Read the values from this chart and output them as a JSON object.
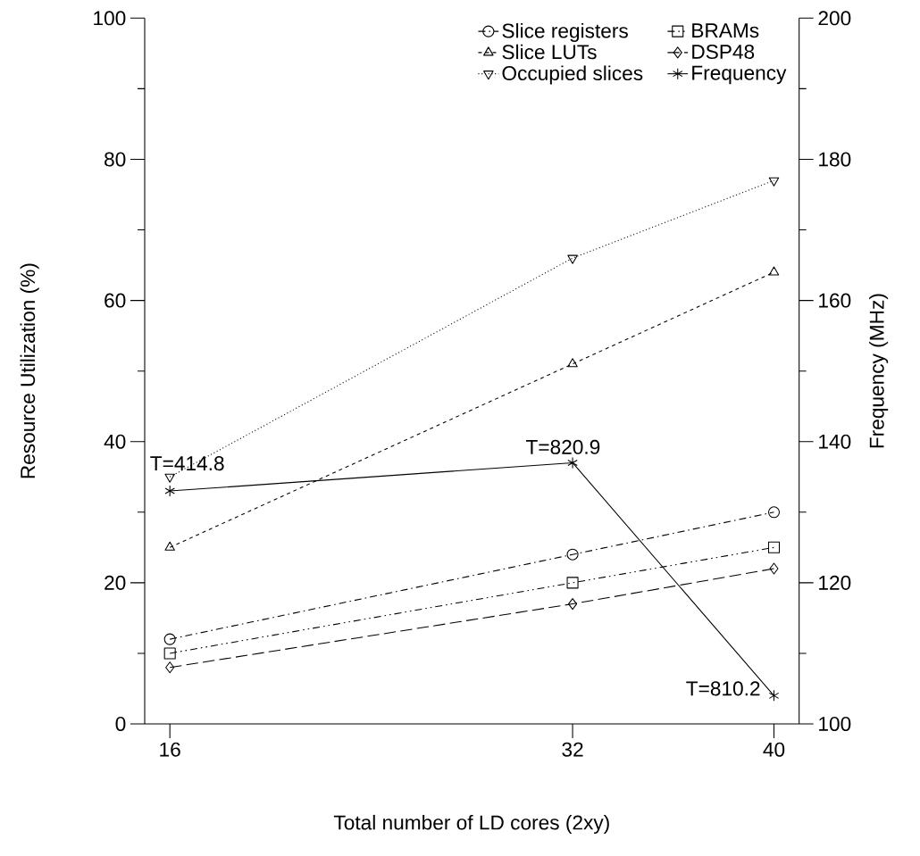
{
  "chart_data": {
    "type": "line",
    "xlabel": "Total number of LD cores (2xy)",
    "ylabel": "Resource Utilization (%)",
    "y2label": "Frequency (MHz)",
    "x": [
      16,
      32,
      40
    ],
    "xlim": [
      15,
      41
    ],
    "xticks": [
      16,
      32,
      40
    ],
    "ylim": [
      0,
      100
    ],
    "yticks": [
      0,
      {
        "value": 10,
        "label": null
      },
      20,
      {
        "value": 30,
        "label": null
      },
      40,
      {
        "value": 50,
        "label": null
      },
      60,
      {
        "value": 70,
        "label": null
      },
      80,
      {
        "value": 90,
        "label": null
      },
      100
    ],
    "y2lim": [
      100,
      200
    ],
    "y2ticks": [
      100,
      {
        "value": 110,
        "label": null
      },
      120,
      {
        "value": 130,
        "label": null
      },
      140,
      {
        "value": 150,
        "label": null
      },
      160,
      {
        "value": 170,
        "label": null
      },
      180,
      {
        "value": 190,
        "label": null
      },
      200
    ],
    "grid": false,
    "legend": "top right",
    "series": [
      {
        "name": "Slice registers",
        "color": "#000000",
        "marker": "circle",
        "line_style": "dashdot",
        "values": [
          12,
          24,
          30
        ]
      },
      {
        "name": "Slice LUTs",
        "color": "#000000",
        "marker": "triangle",
        "line_style": "dashed",
        "values": [
          25,
          51,
          64
        ]
      },
      {
        "name": "Occupied slices",
        "color": "#000000",
        "marker": "triangle down",
        "line_style": "dotted",
        "values": [
          35,
          66,
          77
        ]
      },
      {
        "name": "BRAMs",
        "color": "#000000",
        "marker": "square",
        "line_style": "dashdotdot",
        "values": [
          10,
          20,
          25
        ]
      },
      {
        "name": "DSP48",
        "color": "#000000",
        "marker": "diamond",
        "line_style": "longdash",
        "values": [
          8,
          17,
          22
        ]
      },
      {
        "name": "Frequency",
        "color": "#000000",
        "marker": "cross",
        "line_style": "solid",
        "axis": "y2",
        "values": [
          133,
          137,
          104
        ]
      }
    ],
    "annotations": [
      {
        "text": "T=414.8",
        "x": 16,
        "y": 33
      },
      {
        "text": "T=820.9",
        "x": 32,
        "y": 37
      },
      {
        "text": "T=810.2",
        "x": 40,
        "y": 4
      }
    ]
  }
}
